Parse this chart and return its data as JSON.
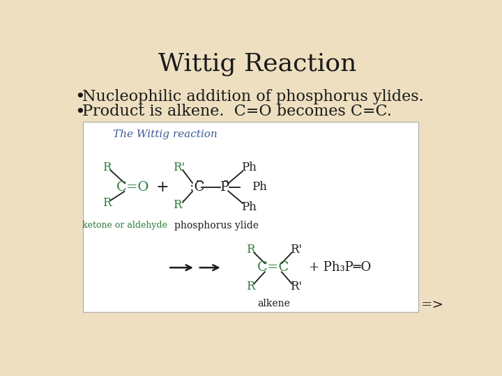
{
  "title": "Wittig Reaction",
  "bullet1": "Nucleophilic addition of phosphorus ylides.",
  "bullet2": "Product is alkene.  C=O becomes C=C.",
  "slide_bg": "#eddfc0",
  "title_fontsize": 26,
  "bullet_fontsize": 16,
  "title_color": "#1a1a1a",
  "bullet_color": "#1a1a1a",
  "box_bg": "#ffffff",
  "green_color": "#2a7a3a",
  "black": "#1a1a1a",
  "subtitle_color": "#3a5a9a",
  "diagram_subtitle": "The Wittig reaction",
  "arrow_label": "=>"
}
